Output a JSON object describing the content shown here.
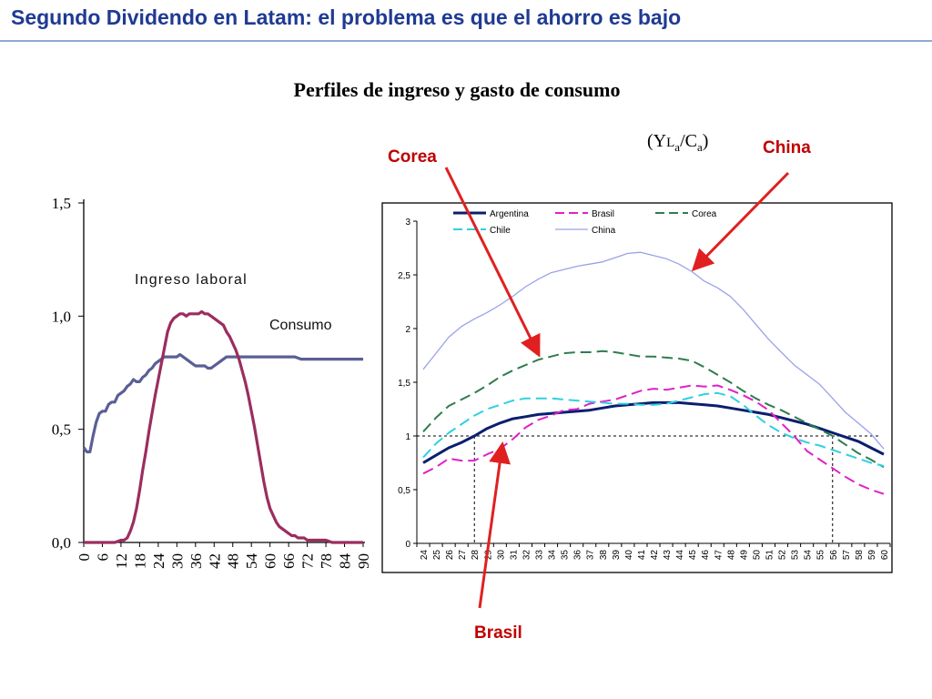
{
  "slide": {
    "title": "Segundo Dividendo en Latam:  el problema es que el ahorro es bajo",
    "chart_heading": "Perfiles de ingreso y gasto de consumo",
    "ratio_label": {
      "y": "(Y",
      "l": "L",
      "a1": "a",
      "slash": "/C",
      "a2": "a",
      "close": ")"
    },
    "callouts": {
      "corea": "Corea",
      "china": "China",
      "brasil": "Brasil"
    }
  },
  "colors": {
    "title": "#1f3a93",
    "ingreso": "#5b5f97",
    "consumo": "#9b2d5f",
    "argentina": "#0a1f6e",
    "brasil": "#e020c8",
    "corea": "#2e7d4f",
    "chile": "#2fd0e0",
    "china": "#9aa2e8",
    "callout": "#e02020"
  },
  "chart_data": [
    {
      "type": "line",
      "ylim": [
        0,
        1.5
      ],
      "yticks": [
        "0,0",
        "0,5",
        "1,0",
        "1,5"
      ],
      "ytick_values": [
        0,
        0.5,
        1.0,
        1.5
      ],
      "xlim": [
        0,
        90
      ],
      "xticks": [
        "0",
        "6",
        "12",
        "18",
        "24",
        "30",
        "36",
        "42",
        "48",
        "54",
        "60",
        "66",
        "72",
        "78",
        "84",
        "90"
      ],
      "annotations": {
        "ingreso": "Ingreso laboral",
        "consumo": "Consumo"
      },
      "series": [
        {
          "key": "ingreso",
          "x": [
            0,
            1,
            2,
            3,
            4,
            5,
            6,
            7,
            8,
            9,
            10,
            11,
            12,
            13,
            14,
            15,
            16,
            17,
            18,
            19,
            20,
            21,
            22,
            23,
            24,
            25,
            26,
            27,
            28,
            29,
            30,
            31,
            32,
            33,
            34,
            35,
            36,
            37,
            38,
            39,
            40,
            41,
            42,
            43,
            44,
            45,
            46,
            47,
            48,
            49,
            50,
            51,
            52,
            53,
            54,
            55,
            56,
            57,
            58,
            59,
            60,
            62,
            64,
            66,
            68,
            70,
            72,
            74,
            76,
            78,
            80,
            82,
            84,
            86,
            88,
            90
          ],
          "y": [
            0.42,
            0.4,
            0.4,
            0.47,
            0.53,
            0.57,
            0.58,
            0.58,
            0.61,
            0.62,
            0.62,
            0.65,
            0.66,
            0.67,
            0.69,
            0.7,
            0.72,
            0.71,
            0.71,
            0.73,
            0.74,
            0.76,
            0.77,
            0.79,
            0.8,
            0.81,
            0.82,
            0.82,
            0.82,
            0.82,
            0.82,
            0.83,
            0.82,
            0.81,
            0.8,
            0.79,
            0.78,
            0.78,
            0.78,
            0.78,
            0.77,
            0.77,
            0.78,
            0.79,
            0.8,
            0.81,
            0.82,
            0.82,
            0.82,
            0.82,
            0.82,
            0.82,
            0.82,
            0.82,
            0.82,
            0.82,
            0.82,
            0.82,
            0.82,
            0.82,
            0.82,
            0.82,
            0.82,
            0.82,
            0.82,
            0.81,
            0.81,
            0.81,
            0.81,
            0.81,
            0.81,
            0.81,
            0.81,
            0.81,
            0.81,
            0.81
          ]
        },
        {
          "key": "consumo",
          "x": [
            0,
            10,
            12,
            13,
            14,
            15,
            16,
            17,
            18,
            19,
            20,
            21,
            22,
            23,
            24,
            25,
            26,
            27,
            28,
            29,
            30,
            31,
            32,
            33,
            34,
            35,
            36,
            37,
            38,
            39,
            40,
            41,
            42,
            43,
            44,
            45,
            46,
            47,
            48,
            49,
            50,
            51,
            52,
            53,
            54,
            55,
            56,
            57,
            58,
            59,
            60,
            61,
            62,
            63,
            64,
            65,
            66,
            67,
            68,
            69,
            70,
            71,
            72,
            73,
            74,
            75,
            76,
            78,
            80,
            82,
            84,
            86,
            88,
            90
          ],
          "y": [
            0,
            0,
            0.01,
            0.01,
            0.02,
            0.05,
            0.09,
            0.15,
            0.23,
            0.32,
            0.4,
            0.49,
            0.57,
            0.65,
            0.72,
            0.79,
            0.86,
            0.93,
            0.97,
            0.99,
            1.0,
            1.01,
            1.01,
            1.0,
            1.01,
            1.01,
            1.01,
            1.01,
            1.02,
            1.01,
            1.01,
            1.0,
            0.99,
            0.98,
            0.97,
            0.96,
            0.93,
            0.91,
            0.88,
            0.85,
            0.81,
            0.76,
            0.71,
            0.65,
            0.58,
            0.51,
            0.43,
            0.35,
            0.27,
            0.2,
            0.15,
            0.12,
            0.09,
            0.07,
            0.06,
            0.05,
            0.04,
            0.03,
            0.03,
            0.02,
            0.02,
            0.02,
            0.01,
            0.01,
            0.01,
            0.01,
            0.01,
            0.01,
            0.0,
            0.0,
            0.0,
            0.0,
            0.0,
            0.0
          ]
        }
      ]
    },
    {
      "type": "line",
      "ylim": [
        0,
        3
      ],
      "yticks": [
        "0",
        "0,5",
        "1",
        "1,5",
        "2",
        "2,5",
        "3"
      ],
      "ytick_values": [
        0,
        0.5,
        1,
        1.5,
        2,
        2.5,
        3
      ],
      "categories": [
        "24",
        "25",
        "26",
        "27",
        "28",
        "29",
        "30",
        "31",
        "32",
        "33",
        "34",
        "35",
        "36",
        "37",
        "38",
        "39",
        "40",
        "41",
        "42",
        "43",
        "44",
        "45",
        "46",
        "47",
        "48",
        "49",
        "50",
        "51",
        "52",
        "53",
        "54",
        "55",
        "56",
        "57",
        "58",
        "59",
        "60"
      ],
      "reference": {
        "y": 1,
        "x_left": 28,
        "x_right": 56
      },
      "legend": [
        "Argentina",
        "Brasil",
        "Corea",
        "Chile",
        "China"
      ],
      "series": [
        {
          "key": "argentina",
          "name": "Argentina",
          "style": "solid",
          "width": 3,
          "values": [
            0.75,
            0.82,
            0.89,
            0.94,
            1.0,
            1.07,
            1.12,
            1.16,
            1.18,
            1.2,
            1.21,
            1.22,
            1.23,
            1.24,
            1.26,
            1.28,
            1.29,
            1.3,
            1.31,
            1.31,
            1.31,
            1.3,
            1.29,
            1.28,
            1.26,
            1.24,
            1.22,
            1.2,
            1.17,
            1.14,
            1.11,
            1.07,
            1.03,
            0.99,
            0.95,
            0.89,
            0.83
          ]
        },
        {
          "key": "brasil",
          "name": "Brasil",
          "style": "dash",
          "width": 2,
          "values": [
            0.65,
            0.71,
            0.79,
            0.77,
            0.77,
            0.83,
            0.88,
            0.97,
            1.08,
            1.15,
            1.19,
            1.24,
            1.25,
            1.3,
            1.32,
            1.34,
            1.38,
            1.42,
            1.44,
            1.43,
            1.45,
            1.47,
            1.46,
            1.47,
            1.43,
            1.38,
            1.32,
            1.24,
            1.12,
            1.0,
            0.86,
            0.78,
            0.7,
            0.62,
            0.55,
            0.5,
            0.46
          ]
        },
        {
          "key": "corea",
          "name": "Corea",
          "style": "dash",
          "width": 2,
          "values": [
            1.04,
            1.17,
            1.28,
            1.34,
            1.4,
            1.47,
            1.55,
            1.61,
            1.66,
            1.71,
            1.74,
            1.77,
            1.78,
            1.78,
            1.79,
            1.78,
            1.76,
            1.74,
            1.74,
            1.73,
            1.72,
            1.7,
            1.64,
            1.57,
            1.5,
            1.42,
            1.35,
            1.29,
            1.24,
            1.18,
            1.12,
            1.06,
            1.0,
            0.92,
            0.84,
            0.78,
            0.71
          ]
        },
        {
          "key": "chile",
          "name": "Chile",
          "style": "dash",
          "width": 2,
          "values": [
            0.8,
            0.93,
            1.03,
            1.11,
            1.19,
            1.25,
            1.29,
            1.33,
            1.35,
            1.35,
            1.35,
            1.34,
            1.33,
            1.32,
            1.31,
            1.3,
            1.3,
            1.29,
            1.29,
            1.3,
            1.33,
            1.36,
            1.39,
            1.4,
            1.37,
            1.29,
            1.19,
            1.1,
            1.03,
            0.98,
            0.94,
            0.91,
            0.87,
            0.83,
            0.79,
            0.75,
            0.72
          ]
        },
        {
          "key": "china",
          "name": "China",
          "style": "solid",
          "width": 1.3,
          "values": [
            1.62,
            1.77,
            1.92,
            2.02,
            2.09,
            2.15,
            2.22,
            2.3,
            2.39,
            2.46,
            2.52,
            2.55,
            2.58,
            2.6,
            2.62,
            2.66,
            2.7,
            2.71,
            2.68,
            2.65,
            2.6,
            2.53,
            2.44,
            2.38,
            2.3,
            2.18,
            2.04,
            1.9,
            1.78,
            1.66,
            1.57,
            1.48,
            1.35,
            1.22,
            1.12,
            1.02,
            0.88
          ]
        }
      ]
    }
  ]
}
